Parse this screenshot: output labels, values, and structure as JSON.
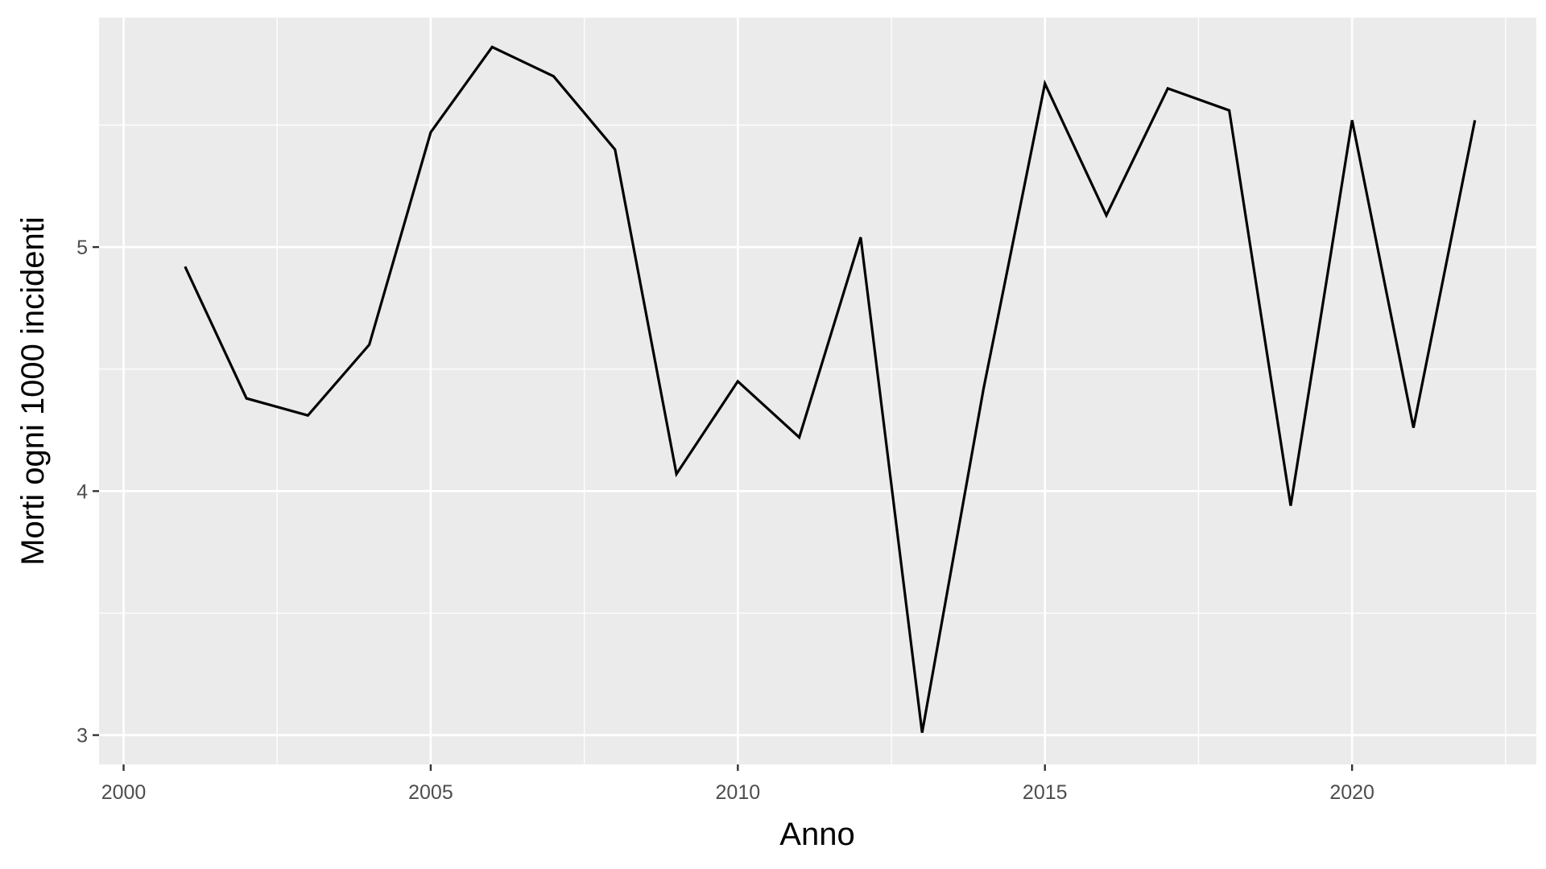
{
  "chart_data": {
    "type": "line",
    "xlabel": "Anno",
    "ylabel": "Morti ogni 1000 incidenti",
    "xlim": [
      1999.6,
      2023.0
    ],
    "ylim": [
      2.88,
      5.94
    ],
    "x_ticks": [
      2000,
      2005,
      2010,
      2015,
      2020
    ],
    "x_minor_ticks": [
      2002.5,
      2007.5,
      2012.5,
      2017.5,
      2022.5
    ],
    "y_ticks": [
      3,
      4,
      5
    ],
    "y_minor_ticks": [
      3.5,
      4.5,
      5.5
    ],
    "grid": true,
    "legend": "none",
    "colors": {
      "panel": "#ebebeb",
      "grid": "#ffffff",
      "line": "#000000"
    },
    "series": [
      {
        "x": [
          2001,
          2002,
          2003,
          2004,
          2005,
          2006,
          2007,
          2008,
          2009,
          2010,
          2011,
          2012,
          2013,
          2014,
          2015,
          2016,
          2017,
          2018,
          2019,
          2020,
          2021,
          2022
        ],
        "values": [
          4.92,
          4.38,
          4.31,
          4.6,
          5.47,
          5.82,
          5.7,
          5.4,
          4.07,
          4.45,
          4.22,
          5.04,
          3.01,
          4.42,
          5.67,
          5.13,
          5.65,
          5.56,
          3.94,
          5.52,
          4.26,
          5.52
        ]
      }
    ]
  }
}
